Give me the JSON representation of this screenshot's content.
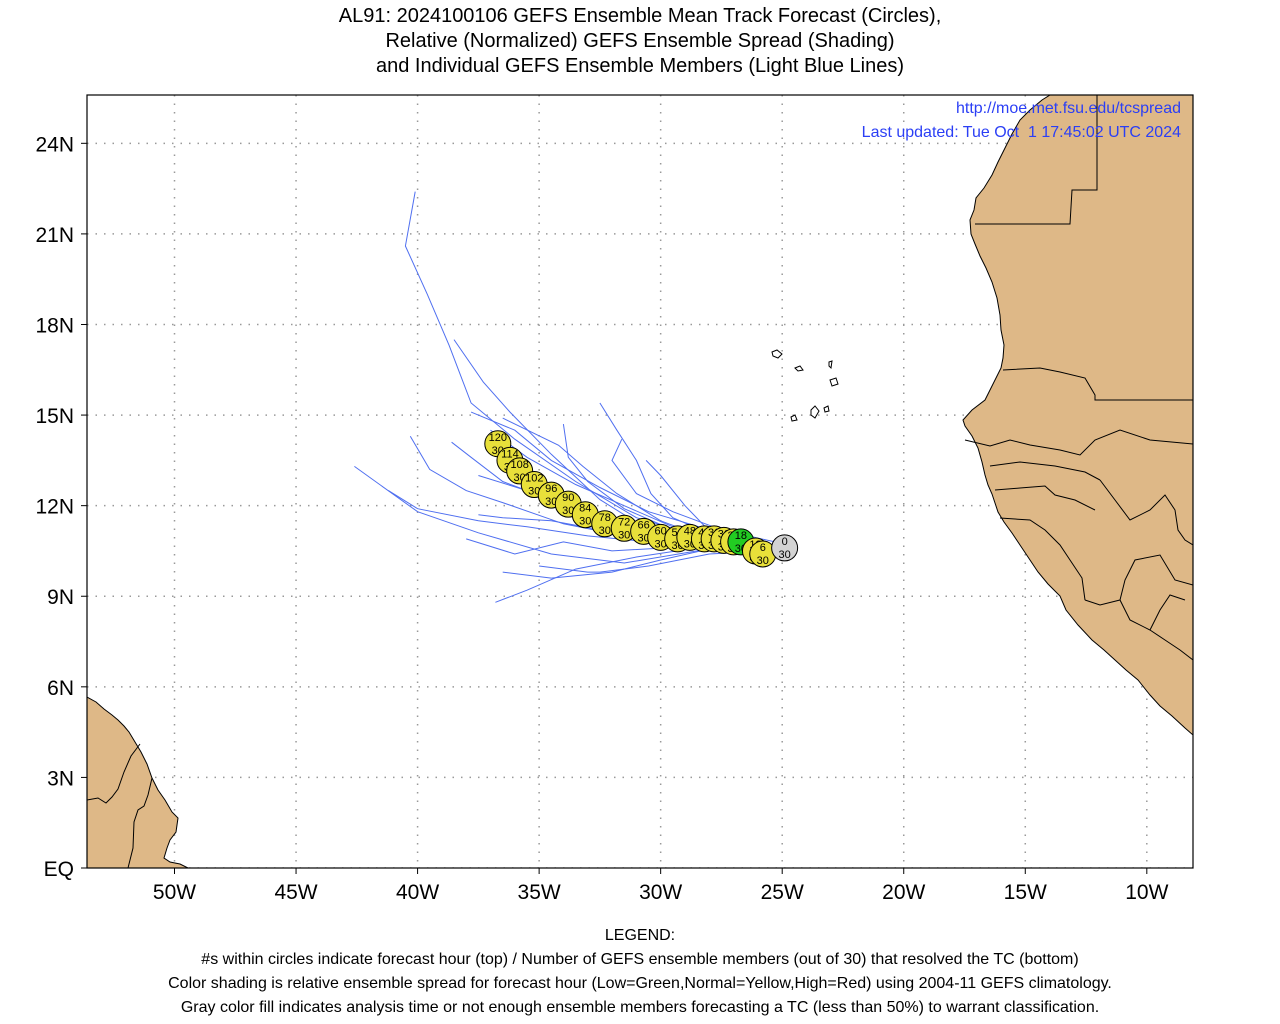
{
  "title": {
    "line1": "AL91: 2024100106 GEFS Ensemble Mean Track Forecast (Circles),",
    "line2": "Relative (Normalized) GEFS Ensemble Spread (Shading)",
    "line3": "and Individual GEFS Ensemble Members (Light Blue Lines)"
  },
  "credit": {
    "url": "http://moe.met.fsu.edu/tcspread",
    "updated": "Last updated: Tue Oct  1 17:45:02 UTC 2024"
  },
  "legend": {
    "heading": "LEGEND:",
    "line1": "#s within circles indicate forecast hour (top) / Number of GEFS ensemble members (out of 30) that resolved the TC (bottom)",
    "line2": "Color shading is relative ensemble spread for forecast hour (Low=Green,Normal=Yellow,High=Red) using 2004-11 GEFS climatology.",
    "line3": "Gray color fill indicates analysis time or not enough ensemble members forecasting a TC (less than 50%) to warrant classification."
  },
  "colors": {
    "land": "#deb887",
    "coast": "#000000",
    "member_track": "#4f6ff0",
    "credit": "#2b3ff5",
    "spread_low": "#22cc22",
    "spread_normal": "#e8e03a",
    "analysis_gray": "#d3d3d3"
  },
  "map": {
    "lon_range": [
      -53.6,
      -8.1
    ],
    "lat_range": [
      0,
      25.6
    ],
    "grid": true,
    "lon_ticks": [
      {
        "lon": -50,
        "label": "50W"
      },
      {
        "lon": -45,
        "label": "45W"
      },
      {
        "lon": -40,
        "label": "40W"
      },
      {
        "lon": -35,
        "label": "35W"
      },
      {
        "lon": -30,
        "label": "30W"
      },
      {
        "lon": -25,
        "label": "25W"
      },
      {
        "lon": -20,
        "label": "20W"
      },
      {
        "lon": -15,
        "label": "15W"
      },
      {
        "lon": -10,
        "label": "10W"
      }
    ],
    "lat_ticks": [
      {
        "lat": 0,
        "label": "EQ"
      },
      {
        "lat": 3,
        "label": "3N"
      },
      {
        "lat": 6,
        "label": "6N"
      },
      {
        "lat": 9,
        "label": "9N"
      },
      {
        "lat": 12,
        "label": "12N"
      },
      {
        "lat": 15,
        "label": "15N"
      },
      {
        "lat": 18,
        "label": "18N"
      },
      {
        "lat": 21,
        "label": "21N"
      },
      {
        "lat": 24,
        "label": "24N"
      }
    ]
  },
  "mean_track": [
    {
      "hour": "0",
      "members": "30",
      "lon": -24.9,
      "lat": 10.6,
      "spread": "gray"
    },
    {
      "hour": "6",
      "members": "30",
      "lon": -25.8,
      "lat": 10.4,
      "spread": "yellow"
    },
    {
      "hour": "12",
      "members": "30",
      "lon": -26.1,
      "lat": 10.5,
      "spread": "yellow"
    },
    {
      "hour": "18",
      "members": "30",
      "lon": -26.7,
      "lat": 10.8,
      "spread": "green"
    },
    {
      "hour": "24",
      "members": "30",
      "lon": -27.0,
      "lat": 10.8,
      "spread": "yellow"
    },
    {
      "hour": "30",
      "members": "30",
      "lon": -27.4,
      "lat": 10.85,
      "spread": "yellow"
    },
    {
      "hour": "36",
      "members": "30",
      "lon": -27.8,
      "lat": 10.9,
      "spread": "yellow"
    },
    {
      "hour": "42",
      "members": "30",
      "lon": -28.2,
      "lat": 10.9,
      "spread": "yellow"
    },
    {
      "hour": "48",
      "members": "30",
      "lon": -28.8,
      "lat": 10.95,
      "spread": "yellow"
    },
    {
      "hour": "54",
      "members": "30",
      "lon": -29.3,
      "lat": 10.9,
      "spread": "yellow"
    },
    {
      "hour": "60",
      "members": "30",
      "lon": -30.0,
      "lat": 10.95,
      "spread": "yellow"
    },
    {
      "hour": "66",
      "members": "30",
      "lon": -30.7,
      "lat": 11.15,
      "spread": "yellow"
    },
    {
      "hour": "72",
      "members": "30",
      "lon": -31.5,
      "lat": 11.25,
      "spread": "yellow"
    },
    {
      "hour": "78",
      "members": "30",
      "lon": -32.3,
      "lat": 11.4,
      "spread": "yellow"
    },
    {
      "hour": "84",
      "members": "30",
      "lon": -33.1,
      "lat": 11.7,
      "spread": "yellow"
    },
    {
      "hour": "90",
      "members": "30",
      "lon": -33.8,
      "lat": 12.05,
      "spread": "yellow"
    },
    {
      "hour": "96",
      "members": "30",
      "lon": -34.5,
      "lat": 12.35,
      "spread": "yellow"
    },
    {
      "hour": "102",
      "members": "30",
      "lon": -35.2,
      "lat": 12.7,
      "spread": "yellow"
    },
    {
      "hour": "108",
      "members": "30",
      "lon": -35.8,
      "lat": 13.15,
      "spread": "yellow"
    },
    {
      "hour": "114",
      "members": "30",
      "lon": -36.2,
      "lat": 13.5,
      "spread": "yellow"
    },
    {
      "hour": "120",
      "members": "30",
      "lon": -36.7,
      "lat": 14.05,
      "spread": "yellow"
    }
  ],
  "member_tracks": [
    [
      [
        -25.2,
        10.5
      ],
      [
        -28,
        10.9
      ],
      [
        -31,
        11.6
      ],
      [
        -33.5,
        12.8
      ],
      [
        -36,
        14.2
      ],
      [
        -37.8,
        15.4
      ],
      [
        -38.7,
        17.3
      ],
      [
        -39.6,
        19.0
      ],
      [
        -40.5,
        20.6
      ],
      [
        -40.1,
        22.4
      ]
    ],
    [
      [
        -25.4,
        10.4
      ],
      [
        -28,
        10.8
      ],
      [
        -30.5,
        11.2
      ],
      [
        -32.5,
        12.2
      ],
      [
        -34.5,
        13.7
      ],
      [
        -36.2,
        15.1
      ],
      [
        -37.3,
        16.1
      ],
      [
        -38.5,
        17.5
      ]
    ],
    [
      [
        -25.3,
        10.5
      ],
      [
        -28.5,
        10.8
      ],
      [
        -31.5,
        11.0
      ],
      [
        -34.0,
        11.4
      ],
      [
        -36.5,
        12.1
      ],
      [
        -38.0,
        12.5
      ],
      [
        -39.5,
        13.2
      ],
      [
        -40.3,
        14.3
      ]
    ],
    [
      [
        -25.5,
        10.6
      ],
      [
        -28.5,
        10.6
      ],
      [
        -31.0,
        10.3
      ],
      [
        -33.5,
        9.9
      ],
      [
        -35.5,
        9.2
      ],
      [
        -36.8,
        8.8
      ]
    ],
    [
      [
        -25.6,
        10.5
      ],
      [
        -28.5,
        10.5
      ],
      [
        -31.5,
        10.1
      ],
      [
        -34.5,
        10.4
      ],
      [
        -37.5,
        11.1
      ],
      [
        -40.0,
        11.8
      ],
      [
        -42.6,
        13.3
      ]
    ],
    [
      [
        -25.4,
        10.6
      ],
      [
        -28.0,
        10.6
      ],
      [
        -30.5,
        10.8
      ],
      [
        -33.0,
        11.0
      ],
      [
        -35.5,
        11.3
      ],
      [
        -37.5,
        11.5
      ],
      [
        -40.0,
        11.9
      ],
      [
        -41.2,
        12.5
      ]
    ],
    [
      [
        -25.4,
        10.7
      ],
      [
        -27.5,
        10.9
      ],
      [
        -29.5,
        11.6
      ],
      [
        -30.4,
        12.4
      ],
      [
        -31.0,
        13.5
      ],
      [
        -31.8,
        14.5
      ],
      [
        -32.5,
        15.4
      ]
    ],
    [
      [
        -25.6,
        10.6
      ],
      [
        -27.8,
        11.0
      ],
      [
        -29.0,
        12.0
      ],
      [
        -30.0,
        13.0
      ],
      [
        -30.6,
        13.5
      ]
    ],
    [
      [
        -25.3,
        10.5
      ],
      [
        -27.5,
        10.8
      ],
      [
        -29.5,
        11.2
      ],
      [
        -31.5,
        11.9
      ],
      [
        -33.0,
        12.8
      ],
      [
        -33.8,
        13.6
      ],
      [
        -34.0,
        14.7
      ]
    ],
    [
      [
        -25.5,
        10.5
      ],
      [
        -27.8,
        10.7
      ],
      [
        -30.0,
        11.0
      ],
      [
        -32.0,
        11.5
      ],
      [
        -34.5,
        12.2
      ],
      [
        -36.5,
        12.8
      ],
      [
        -37.8,
        13.6
      ],
      [
        -38.6,
        14.1
      ]
    ],
    [
      [
        -25.4,
        10.4
      ],
      [
        -27.8,
        10.6
      ],
      [
        -30.0,
        10.2
      ],
      [
        -32.0,
        9.8
      ],
      [
        -34.5,
        9.6
      ],
      [
        -36.5,
        9.8
      ]
    ],
    [
      [
        -25.6,
        10.8
      ],
      [
        -28.0,
        11.2
      ],
      [
        -30.5,
        11.8
      ],
      [
        -32.5,
        12.6
      ],
      [
        -34.5,
        13.5
      ],
      [
        -36.0,
        14.5
      ],
      [
        -37.8,
        15.1
      ]
    ],
    [
      [
        -25.5,
        10.6
      ],
      [
        -27.8,
        10.7
      ],
      [
        -30.0,
        10.9
      ],
      [
        -32.5,
        11.2
      ],
      [
        -34.5,
        11.5
      ],
      [
        -36.5,
        11.6
      ],
      [
        -37.5,
        11.7
      ]
    ],
    [
      [
        -25.6,
        10.5
      ],
      [
        -28.0,
        10.4
      ],
      [
        -30.5,
        10.0
      ],
      [
        -32.5,
        9.8
      ],
      [
        -33.0,
        9.8
      ],
      [
        -35.0,
        10.0
      ]
    ],
    [
      [
        -25.3,
        10.8
      ],
      [
        -27.5,
        11.2
      ],
      [
        -29.5,
        11.8
      ],
      [
        -31.0,
        12.4
      ],
      [
        -32.0,
        13.5
      ],
      [
        -31.6,
        14.2
      ]
    ],
    [
      [
        -25.4,
        10.6
      ],
      [
        -27.5,
        10.8
      ],
      [
        -29.5,
        11.3
      ],
      [
        -31.5,
        12.0
      ],
      [
        -33.5,
        12.7
      ],
      [
        -35.5,
        13.6
      ],
      [
        -37.0,
        14.5
      ]
    ],
    [
      [
        -25.5,
        10.7
      ],
      [
        -28.0,
        10.9
      ],
      [
        -30.0,
        11.5
      ],
      [
        -31.8,
        12.4
      ],
      [
        -33.2,
        13.3
      ],
      [
        -34.2,
        14.0
      ],
      [
        -36.5,
        14.9
      ]
    ],
    [
      [
        -25.4,
        10.4
      ],
      [
        -27.7,
        10.6
      ],
      [
        -29.8,
        10.6
      ],
      [
        -32.0,
        10.5
      ],
      [
        -34.0,
        10.8
      ],
      [
        -36.0,
        10.4
      ],
      [
        -38.0,
        10.9
      ]
    ],
    [
      [
        -25.6,
        10.6
      ],
      [
        -28.0,
        10.8
      ],
      [
        -30.2,
        11.1
      ],
      [
        -32.0,
        11.5
      ],
      [
        -33.5,
        12.0
      ],
      [
        -35.5,
        12.5
      ],
      [
        -37.5,
        13.0
      ]
    ]
  ]
}
